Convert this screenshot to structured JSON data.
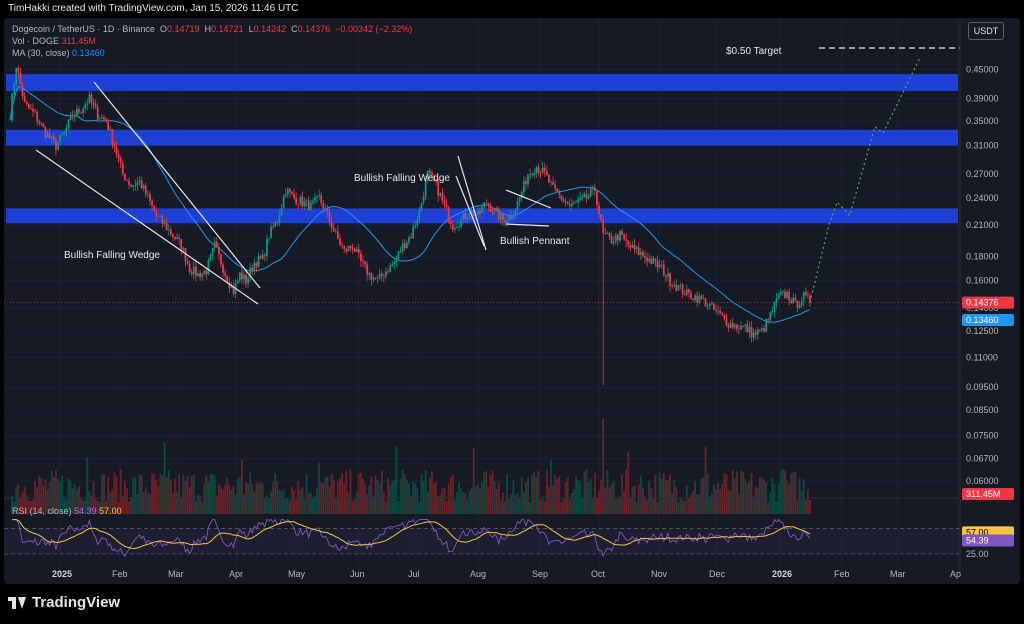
{
  "header": {
    "credit": "TimHakki created with TradingView.com, Jan 15, 2026 11:46 UTC"
  },
  "legend": {
    "symbol": "Dogecoin / TetherUS · 1D · Binance",
    "o_label": "O",
    "o": "0.14719",
    "h_label": "H",
    "h": "0.14721",
    "l_label": "L",
    "l": "0.14242",
    "c_label": "C",
    "c": "0.14376",
    "change": "−0.00342 (−2.32%)",
    "vol_label": "Vol · DOGE",
    "vol_value": "311.45M",
    "ma_label": "MA (30, close)",
    "ma_value": "0.13460",
    "rsi_label": "RSI (14, close)",
    "rsi_value": "54.39",
    "rsi_ma_value": "57.00"
  },
  "currency_button": "USDT",
  "annotations": {
    "target": "$0.50 Target",
    "wedge1": "Bullish Falling Wedge",
    "wedge2": "Bullish Falling Wedge",
    "pennant": "Bullish Pennant"
  },
  "price_tags": {
    "last": "0.14376",
    "ma": "0.13460",
    "volume": "311.45M",
    "rsi_ma": "57.00",
    "rsi": "54.39"
  },
  "brand": "TradingView",
  "colors": {
    "up": "#089981",
    "down": "#f23645",
    "ma": "#2196f3",
    "zone": "#1e3fd6",
    "rsi": "#7e57c2",
    "rsi_ma": "#f5c542",
    "projection": "#4caf50"
  },
  "chart_data": {
    "type": "candlestick",
    "y_scale": "log",
    "y_ticks": [
      "0.45000",
      "0.39000",
      "0.35000",
      "0.31000",
      "0.27000",
      "0.24000",
      "0.21000",
      "0.18000",
      "0.16000",
      "0.14000",
      "0.12500",
      "0.11000",
      "0.09500",
      "0.08500",
      "0.07500",
      "0.06700",
      "0.06000"
    ],
    "x_ticks": [
      "2025",
      "Feb",
      "Mar",
      "Apr",
      "May",
      "Jun",
      "Jul",
      "Aug",
      "Sep",
      "Oct",
      "Nov",
      "Dec",
      "2026",
      "Feb",
      "Mar",
      "Ap"
    ],
    "rsi_ticks": [
      "57.00",
      "54.39",
      "25.00"
    ],
    "last_price": 0.14376,
    "ma_value": 0.1346,
    "resistance_zones": [
      [
        0.405,
        0.44
      ],
      [
        0.31,
        0.335
      ],
      [
        0.212,
        0.228
      ]
    ],
    "price_path": [
      [
        0,
        0.36
      ],
      [
        3,
        0.46
      ],
      [
        7,
        0.38
      ],
      [
        12,
        0.36
      ],
      [
        17,
        0.33
      ],
      [
        22,
        0.31
      ],
      [
        26,
        0.33
      ],
      [
        30,
        0.36
      ],
      [
        34,
        0.37
      ],
      [
        38,
        0.39
      ],
      [
        42,
        0.36
      ],
      [
        46,
        0.35
      ],
      [
        50,
        0.31
      ],
      [
        54,
        0.27
      ],
      [
        58,
        0.255
      ],
      [
        62,
        0.26
      ],
      [
        66,
        0.24
      ],
      [
        70,
        0.22
      ],
      [
        74,
        0.21
      ],
      [
        78,
        0.2
      ],
      [
        82,
        0.19
      ],
      [
        86,
        0.17
      ],
      [
        90,
        0.165
      ],
      [
        94,
        0.168
      ],
      [
        98,
        0.19
      ],
      [
        101,
        0.175
      ],
      [
        104,
        0.162
      ],
      [
        107,
        0.152
      ],
      [
        110,
        0.165
      ],
      [
        113,
        0.16
      ],
      [
        117,
        0.175
      ],
      [
        121,
        0.178
      ],
      [
        124,
        0.2
      ],
      [
        128,
        0.215
      ],
      [
        132,
        0.25
      ],
      [
        136,
        0.24
      ],
      [
        140,
        0.235
      ],
      [
        144,
        0.23
      ],
      [
        148,
        0.24
      ],
      [
        152,
        0.22
      ],
      [
        156,
        0.2
      ],
      [
        160,
        0.185
      ],
      [
        164,
        0.19
      ],
      [
        168,
        0.175
      ],
      [
        172,
        0.165
      ],
      [
        176,
        0.16
      ],
      [
        180,
        0.168
      ],
      [
        184,
        0.175
      ],
      [
        188,
        0.19
      ],
      [
        192,
        0.2
      ],
      [
        196,
        0.225
      ],
      [
        200,
        0.27
      ],
      [
        204,
        0.255
      ],
      [
        208,
        0.23
      ],
      [
        212,
        0.21
      ],
      [
        216,
        0.215
      ],
      [
        220,
        0.225
      ],
      [
        224,
        0.22
      ],
      [
        228,
        0.235
      ],
      [
        232,
        0.225
      ],
      [
        236,
        0.215
      ],
      [
        240,
        0.22
      ],
      [
        244,
        0.24
      ],
      [
        248,
        0.27
      ],
      [
        252,
        0.28
      ],
      [
        256,
        0.27
      ],
      [
        260,
        0.25
      ],
      [
        264,
        0.24
      ],
      [
        268,
        0.23
      ],
      [
        272,
        0.235
      ],
      [
        276,
        0.24
      ],
      [
        280,
        0.25
      ],
      [
        284,
        0.2
      ],
      [
        288,
        0.195
      ],
      [
        292,
        0.2
      ],
      [
        296,
        0.19
      ],
      [
        300,
        0.185
      ],
      [
        304,
        0.18
      ],
      [
        308,
        0.175
      ],
      [
        312,
        0.17
      ],
      [
        316,
        0.16
      ],
      [
        320,
        0.155
      ],
      [
        324,
        0.15
      ],
      [
        328,
        0.148
      ],
      [
        332,
        0.145
      ],
      [
        336,
        0.14
      ],
      [
        340,
        0.135
      ],
      [
        344,
        0.13
      ],
      [
        348,
        0.128
      ],
      [
        352,
        0.127
      ],
      [
        356,
        0.123
      ],
      [
        360,
        0.125
      ],
      [
        364,
        0.135
      ],
      [
        368,
        0.148
      ],
      [
        372,
        0.15
      ],
      [
        376,
        0.142
      ],
      [
        380,
        0.148
      ],
      [
        383,
        0.144
      ]
    ],
    "projection": [
      [
        383,
        0.144
      ],
      [
        392,
        0.21
      ],
      [
        396,
        0.235
      ],
      [
        402,
        0.22
      ],
      [
        414,
        0.34
      ],
      [
        418,
        0.33
      ],
      [
        436,
        0.48
      ]
    ],
    "target_price": 0.5
  }
}
